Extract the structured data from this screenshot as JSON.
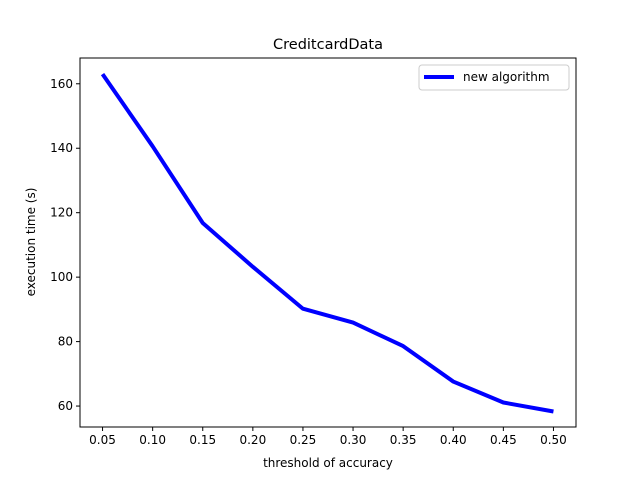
{
  "chart_data": {
    "type": "line",
    "title": "CreditcardData",
    "xlabel": "threshold of accuracy",
    "ylabel": "execution time (s)",
    "x": [
      0.05,
      0.1,
      0.15,
      0.2,
      0.25,
      0.3,
      0.35,
      0.4,
      0.45,
      0.5
    ],
    "x_tick_labels": [
      "0.05",
      "0.10",
      "0.15",
      "0.20",
      "0.25",
      "0.30",
      "0.35",
      "0.40",
      "0.45",
      "0.50"
    ],
    "series": [
      {
        "name": "new algorithm",
        "color": "#0000ff",
        "values": [
          163.0,
          140.6,
          116.8,
          103.2,
          90.2,
          85.9,
          78.6,
          67.6,
          61.1,
          58.3
        ]
      }
    ],
    "xlim": [
      0.0275,
      0.5225
    ],
    "ylim": [
      53.5,
      168.0
    ],
    "y_ticks": [
      60,
      80,
      100,
      120,
      140,
      160
    ],
    "grid": false,
    "legend_position": "upper right"
  }
}
